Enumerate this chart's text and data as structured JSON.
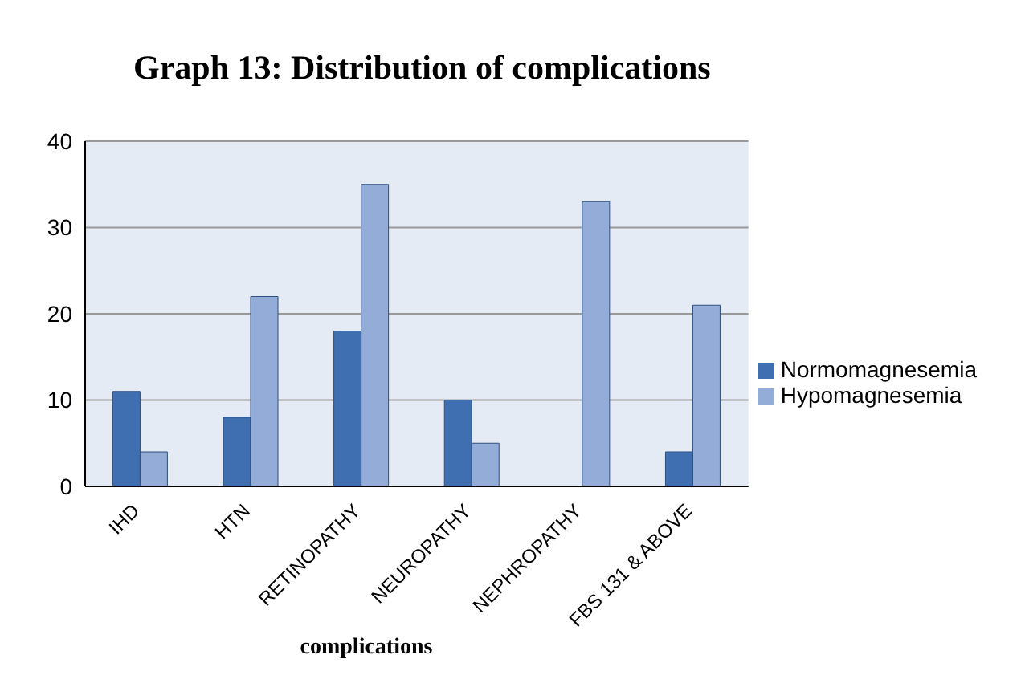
{
  "chart_data": {
    "type": "bar",
    "title": "Graph 13: Distribution of complications",
    "xlabel": "complications",
    "categories": [
      "IHD",
      "HTN",
      "RETINOPATHY",
      "NEUROPATHY",
      "NEPHROPATHY",
      "FBS 131 & ABOVE"
    ],
    "series": [
      {
        "name": "Normomagnesemia",
        "color": "#3f6fb0",
        "values": [
          11,
          8,
          18,
          10,
          0,
          4
        ]
      },
      {
        "name": "Hypomagnesemia",
        "color": "#94acd8",
        "values": [
          4,
          22,
          35,
          5,
          33,
          21
        ]
      }
    ],
    "ylim": [
      0,
      40
    ],
    "yticks": [
      0,
      10,
      20,
      30,
      40
    ],
    "grid": "y",
    "legend": "right"
  }
}
